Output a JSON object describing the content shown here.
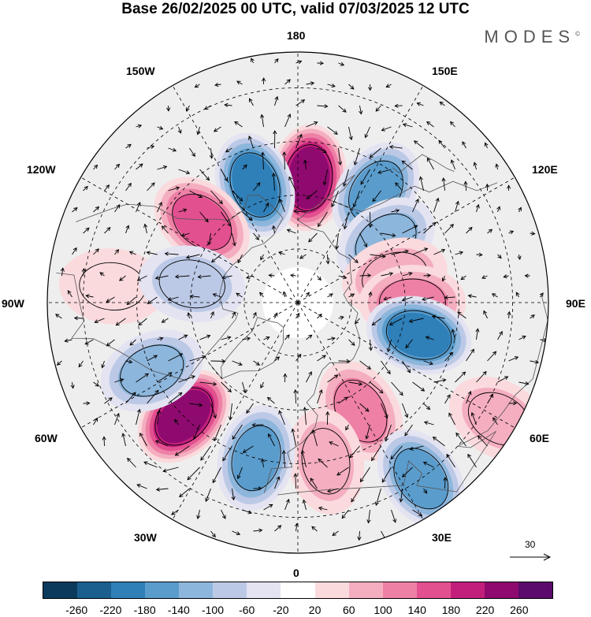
{
  "title": "Base 26/02/2025 00 UTC, valid 07/03/2025 12 UTC",
  "logo": "MODES",
  "longitude_labels": {
    "top": "180",
    "bottom": "0",
    "left": "90W",
    "right": "90E",
    "upper_left_near": "150W",
    "upper_left_far": "120W",
    "upper_right_near": "150E",
    "upper_right_far": "120E",
    "lower_left_far": "60W",
    "lower_left_near": "30W",
    "lower_right_far": "60E",
    "lower_right_near": "30E"
  },
  "vector_scale": {
    "label": "30"
  },
  "colorbar": {
    "colors": [
      "#0c3a5c",
      "#1a5f8e",
      "#2f7fb8",
      "#5a9ccc",
      "#8db6dc",
      "#bcc9e6",
      "#e3e3f1",
      "#ffffff",
      "#fadadd",
      "#f4aec0",
      "#ee80a6",
      "#e2508f",
      "#c21f7c",
      "#8e0a6e",
      "#5a0b6b"
    ],
    "labels": [
      "-260",
      "-220",
      "-180",
      "-140",
      "-100",
      "-60",
      "-20",
      "20",
      "60",
      "100",
      "140",
      "180",
      "220",
      "260"
    ]
  },
  "anomaly_centers": [
    {
      "lon": 175,
      "lat": 55,
      "value": 250
    },
    {
      "lon": -160,
      "lat": 55,
      "value": -200
    },
    {
      "lon": -130,
      "lat": 55,
      "value": 170
    },
    {
      "lon": 145,
      "lat": 52,
      "value": -150
    },
    {
      "lon": 125,
      "lat": 60,
      "value": -110
    },
    {
      "lon": 105,
      "lat": 62,
      "value": 80
    },
    {
      "lon": 90,
      "lat": 58,
      "value": 110
    },
    {
      "lon": 75,
      "lat": 55,
      "value": -190
    },
    {
      "lon": 30,
      "lat": 55,
      "value": 120
    },
    {
      "lon": 10,
      "lat": 45,
      "value": 90
    },
    {
      "lon": -15,
      "lat": 45,
      "value": -140
    },
    {
      "lon": -45,
      "lat": 45,
      "value": 230
    },
    {
      "lon": -65,
      "lat": 45,
      "value": -100
    },
    {
      "lon": -95,
      "lat": 38,
      "value": 60
    },
    {
      "lon": 35,
      "lat": 30,
      "value": -140
    },
    {
      "lon": 60,
      "lat": 25,
      "value": 90
    },
    {
      "lon": -100,
      "lat": 60,
      "value": -60
    }
  ]
}
